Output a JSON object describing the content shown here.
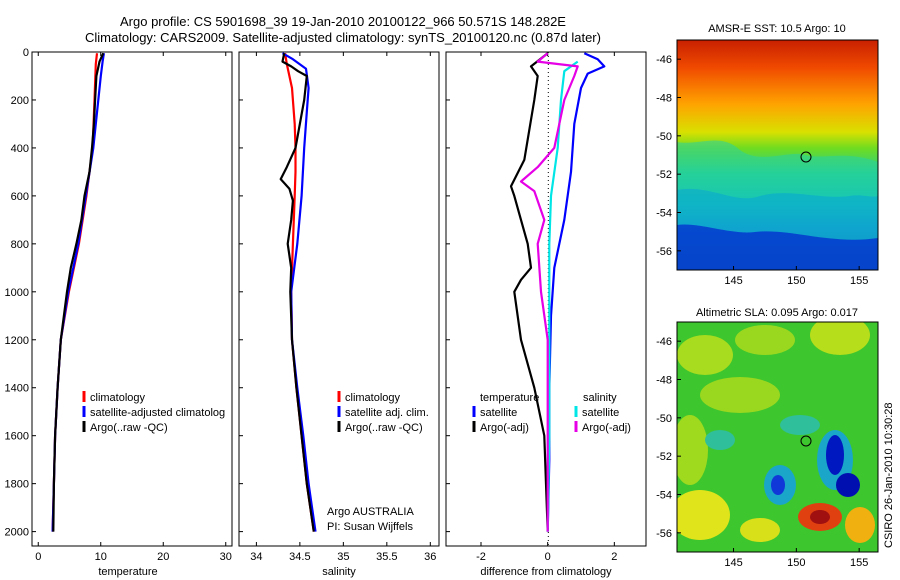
{
  "title_line1": "Argo profile: CS 5901698_39 19-Jan-2010 20100122_966 50.571S 148.282E",
  "title_line2": "Climatology: CARS2009. Satellite-adjusted climatology: synTS_20100120.nc (0.87d later)",
  "credit": "CSIRO 26-Jan-2010 10:30:28",
  "colors": {
    "climatology": "#ff0000",
    "satellite": "#0000ff",
    "argo": "#000000",
    "sat_salinity": "#00e5e5",
    "argo_adj_salinity": "#e600e6"
  },
  "chart_data": [
    {
      "type": "line",
      "name": "temperature",
      "xlabel": "temperature",
      "xlim": [
        -1,
        31
      ],
      "ylim": [
        2060,
        0
      ],
      "x_ticks": [
        "0",
        "10",
        "20",
        "30"
      ],
      "y_ticks": [
        "0",
        "200",
        "400",
        "600",
        "800",
        "1000",
        "1200",
        "1400",
        "1600",
        "1800",
        "2000"
      ],
      "legend": [
        "climatology",
        "satellite-adjusted climatolog",
        "Argo(..raw -QC)"
      ],
      "series": [
        {
          "name": "climatology",
          "color": "#ff0000",
          "points": [
            [
              9.4,
              5
            ],
            [
              9.2,
              50
            ],
            [
              9.0,
              200
            ],
            [
              8.7,
              400
            ],
            [
              7.7,
              600
            ],
            [
              6.5,
              800
            ],
            [
              4.9,
              1000
            ],
            [
              3.6,
              1200
            ],
            [
              3.1,
              1400
            ],
            [
              2.7,
              1600
            ],
            [
              2.5,
              1800
            ],
            [
              2.3,
              2000
            ]
          ]
        },
        {
          "name": "satellite-adjusted climatolog",
          "color": "#0000ff",
          "points": [
            [
              10.5,
              5
            ],
            [
              10.3,
              40
            ],
            [
              10.0,
              100
            ],
            [
              9.6,
              200
            ],
            [
              9.2,
              300
            ],
            [
              8.8,
              400
            ],
            [
              7.6,
              600
            ],
            [
              6.4,
              800
            ],
            [
              4.8,
              1000
            ],
            [
              3.6,
              1200
            ],
            [
              3.1,
              1400
            ],
            [
              2.7,
              1600
            ],
            [
              2.5,
              1800
            ],
            [
              2.3,
              2000
            ]
          ]
        },
        {
          "name": "Argo(..raw -QC)",
          "color": "#000000",
          "points": [
            [
              10.4,
              5
            ],
            [
              9.8,
              40
            ],
            [
              9.3,
              100
            ],
            [
              9.1,
              200
            ],
            [
              8.9,
              300
            ],
            [
              8.6,
              400
            ],
            [
              8.2,
              500
            ],
            [
              7.4,
              600
            ],
            [
              6.9,
              700
            ],
            [
              6.1,
              800
            ],
            [
              5.2,
              900
            ],
            [
              4.6,
              1000
            ],
            [
              3.6,
              1200
            ],
            [
              3.1,
              1400
            ],
            [
              2.7,
              1600
            ],
            [
              2.5,
              1800
            ],
            [
              2.4,
              2000
            ]
          ]
        }
      ]
    },
    {
      "type": "line",
      "name": "salinity",
      "xlabel": "salinity",
      "xlim": [
        33.8,
        36.1
      ],
      "ylim": [
        2060,
        0
      ],
      "x_ticks": [
        "34",
        "34.5",
        "35",
        "35.5",
        "36"
      ],
      "legend": [
        "climatology",
        "satellite adj. clim.",
        "Argo(..raw -QC)"
      ],
      "annotation": [
        "Argo AUSTRALIA",
        "PI: Susan Wijffels"
      ],
      "series": [
        {
          "name": "climatology",
          "color": "#ff0000",
          "points": [
            [
              34.33,
              5
            ],
            [
              34.35,
              50
            ],
            [
              34.41,
              150
            ],
            [
              34.44,
              300
            ],
            [
              34.45,
              400
            ],
            [
              34.45,
              500
            ],
            [
              34.44,
              600
            ],
            [
              34.42,
              800
            ],
            [
              34.4,
              1000
            ],
            [
              34.41,
              1200
            ],
            [
              34.46,
              1400
            ],
            [
              34.52,
              1600
            ],
            [
              34.58,
              1800
            ],
            [
              34.66,
              2000
            ]
          ]
        },
        {
          "name": "satellite adj. clim.",
          "color": "#0000ff",
          "points": [
            [
              34.3,
              5
            ],
            [
              34.42,
              30
            ],
            [
              34.57,
              70
            ],
            [
              34.6,
              150
            ],
            [
              34.58,
              250
            ],
            [
              34.55,
              400
            ],
            [
              34.52,
              600
            ],
            [
              34.47,
              800
            ],
            [
              34.4,
              1000
            ],
            [
              34.41,
              1200
            ],
            [
              34.47,
              1400
            ],
            [
              34.54,
              1600
            ],
            [
              34.6,
              1800
            ],
            [
              34.68,
              2000
            ]
          ]
        },
        {
          "name": "Argo(..raw -QC)",
          "color": "#000000",
          "points": [
            [
              34.32,
              5
            ],
            [
              34.3,
              40
            ],
            [
              34.4,
              60
            ],
            [
              34.48,
              80
            ],
            [
              34.58,
              100
            ],
            [
              34.55,
              200
            ],
            [
              34.45,
              400
            ],
            [
              34.35,
              480
            ],
            [
              34.28,
              530
            ],
            [
              34.38,
              570
            ],
            [
              34.42,
              620
            ],
            [
              34.4,
              700
            ],
            [
              34.36,
              800
            ],
            [
              34.4,
              900
            ],
            [
              34.39,
              1000
            ],
            [
              34.41,
              1200
            ],
            [
              34.46,
              1400
            ],
            [
              34.52,
              1600
            ],
            [
              34.58,
              1800
            ],
            [
              34.66,
              2000
            ]
          ]
        }
      ]
    },
    {
      "type": "line",
      "name": "difference",
      "xlabel": "difference from climatology",
      "xlim": [
        -3.05,
        2.95
      ],
      "ylim": [
        2060,
        0
      ],
      "x_ticks": [
        "-2",
        "0",
        "2"
      ],
      "legend_left": [
        "temperature",
        "satellite",
        "Argo(-adj)"
      ],
      "legend_right": [
        "salinity",
        "satellite",
        "Argo(-adj)"
      ],
      "series": [
        {
          "name": "temperature satellite",
          "color": "#0000ff",
          "points": [
            [
              1.1,
              5
            ],
            [
              1.5,
              30
            ],
            [
              1.7,
              60
            ],
            [
              1.2,
              90
            ],
            [
              1.0,
              150
            ],
            [
              0.8,
              300
            ],
            [
              0.7,
              500
            ],
            [
              0.5,
              700
            ],
            [
              0.2,
              900
            ],
            [
              0.1,
              1100
            ],
            [
              0.05,
              1400
            ],
            [
              0.05,
              1700
            ],
            [
              0.0,
              2000
            ]
          ]
        },
        {
          "name": "temperature Argo(-adj)",
          "color": "#000000",
          "points": [
            [
              0.0,
              5
            ],
            [
              -0.5,
              60
            ],
            [
              -0.3,
              100
            ],
            [
              -0.4,
              200
            ],
            [
              -0.7,
              450
            ],
            [
              -1.1,
              560
            ],
            [
              -1.0,
              600
            ],
            [
              -0.8,
              700
            ],
            [
              -0.6,
              800
            ],
            [
              -0.5,
              900
            ],
            [
              -0.8,
              950
            ],
            [
              -1.0,
              1000
            ],
            [
              -0.8,
              1200
            ],
            [
              -0.4,
              1400
            ],
            [
              -0.1,
              1600
            ],
            [
              -0.05,
              1800
            ],
            [
              0.0,
              2000
            ]
          ]
        },
        {
          "name": "salinity satellite",
          "color": "#00e5e5",
          "points": [
            [
              0.9,
              40
            ],
            [
              0.5,
              80
            ],
            [
              0.4,
              200
            ],
            [
              0.3,
              400
            ],
            [
              0.1,
              600
            ],
            [
              0.05,
              800
            ],
            [
              0.05,
              1200
            ],
            [
              0.05,
              1600
            ],
            [
              0.0,
              2000
            ]
          ]
        },
        {
          "name": "salinity Argo(-adj)",
          "color": "#e600e6",
          "points": [
            [
              0.0,
              5
            ],
            [
              -0.3,
              40
            ],
            [
              0.9,
              60
            ],
            [
              0.8,
              100
            ],
            [
              0.5,
              200
            ],
            [
              0.2,
              400
            ],
            [
              -0.3,
              480
            ],
            [
              -0.8,
              540
            ],
            [
              -0.4,
              580
            ],
            [
              -0.1,
              700
            ],
            [
              -0.3,
              800
            ],
            [
              -0.2,
              1000
            ],
            [
              0.0,
              1200
            ],
            [
              0.0,
              1600
            ],
            [
              0.0,
              2000
            ]
          ]
        }
      ]
    },
    {
      "type": "heatmap",
      "title": "AMSR-E SST: 10.5 Argo: 10",
      "x_ticks": [
        "145",
        "150",
        "155"
      ],
      "y_ticks": [
        "-46",
        "-48",
        "-50",
        "-52",
        "-54",
        "-56"
      ],
      "marker_lon": 148.282,
      "marker_lat": -50.571
    },
    {
      "type": "heatmap",
      "title": "Altimetric SLA: 0.095 Argo: 0.017",
      "x_ticks": [
        "145",
        "150",
        "155"
      ],
      "y_ticks": [
        "-46",
        "-48",
        "-50",
        "-52",
        "-54",
        "-56"
      ],
      "marker_lon": 148.282,
      "marker_lat": -50.571
    }
  ]
}
